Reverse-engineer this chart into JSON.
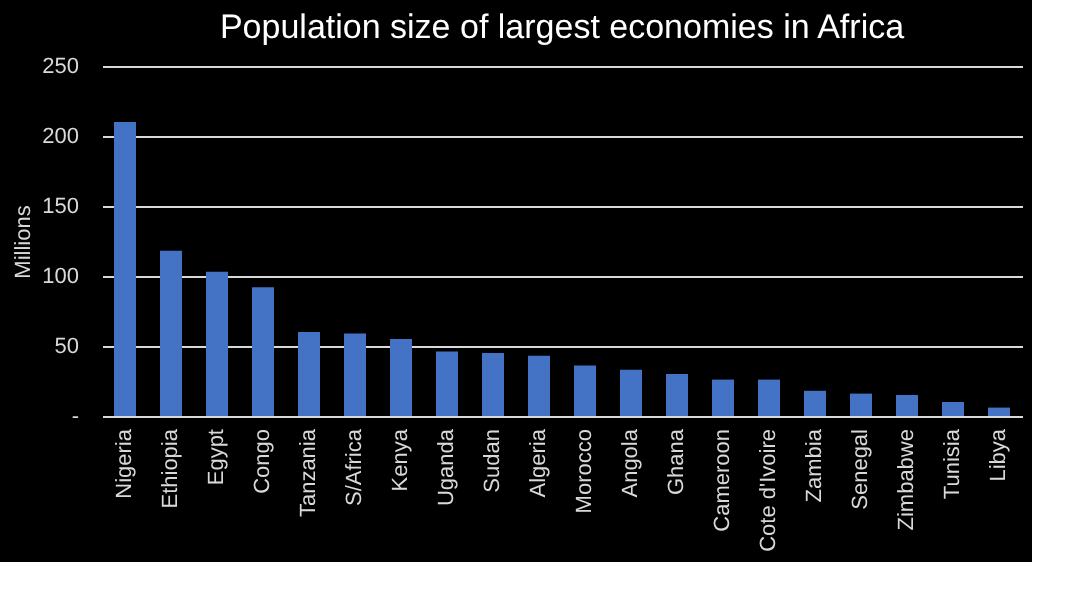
{
  "chart_data": {
    "type": "bar",
    "title": "Population size of largest economies in Africa",
    "ylabel": "Millions",
    "categories": [
      "Nigeria",
      "Ethiopia",
      "Egypt",
      "Congo",
      "Tanzania",
      "S/Africa",
      "Kenya",
      "Uganda",
      "Sudan",
      "Algeria",
      "Morocco",
      "Angola",
      "Ghana",
      "Cameroon",
      "Cote d'Ivoire",
      "Zambia",
      "Senegal",
      "Zimbabwe",
      "Tunisia",
      "Libya"
    ],
    "values": [
      210,
      118,
      103,
      92,
      60,
      59,
      55,
      46,
      45,
      43,
      36,
      33,
      30,
      26,
      26,
      18,
      16,
      15,
      10,
      6
    ],
    "color": "#4472c4",
    "ylim": [
      0,
      250
    ],
    "yticks": [
      {
        "value": 0,
        "label": "-"
      },
      50,
      100,
      150,
      200,
      250
    ],
    "grid": "y"
  }
}
